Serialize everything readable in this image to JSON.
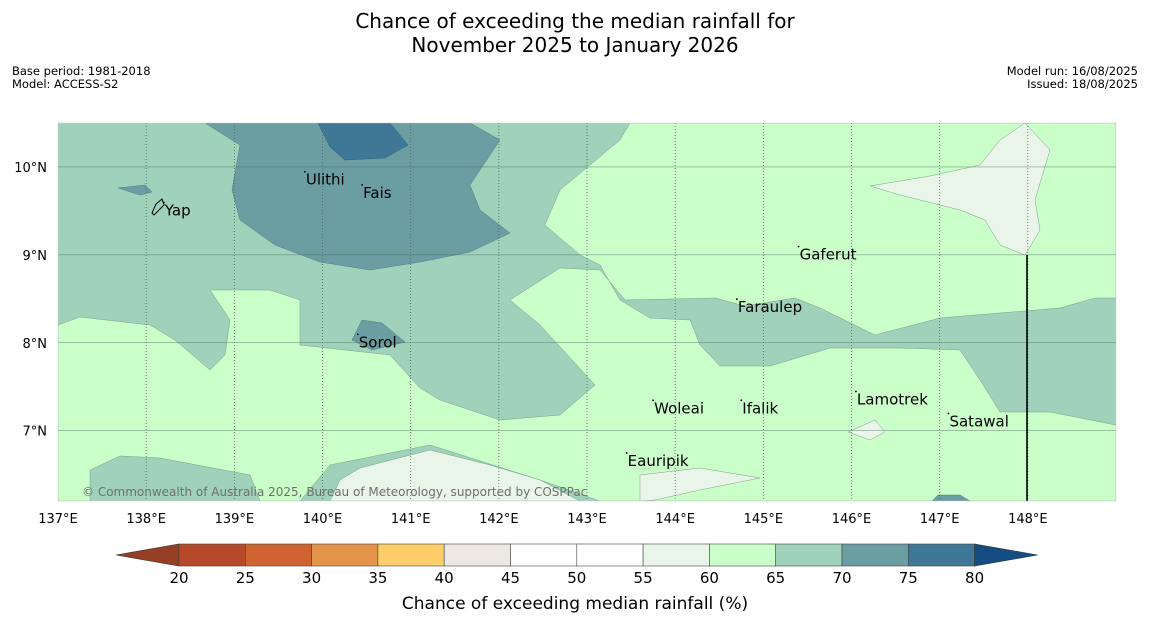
{
  "title": {
    "line1": "Chance of exceeding the median rainfall for",
    "line2": "November 2025 to January 2026"
  },
  "meta_left": [
    "Base period: 1981-2018",
    "Model: ACCESS-S2"
  ],
  "meta_right": [
    "Model run: 16/08/2025",
    "Issued: 18/08/2025"
  ],
  "copyright": "© Commonwealth of Australia 2025, Bureau of Meteorology, supported by COSPPac",
  "axes": {
    "lon_range": [
      137,
      149
    ],
    "lat_range": [
      6.2,
      10.5
    ],
    "lon_ticks": [
      "137°E",
      "138°E",
      "139°E",
      "140°E",
      "141°E",
      "142°E",
      "143°E",
      "144°E",
      "145°E",
      "146°E",
      "147°E",
      "148°E"
    ],
    "lat_ticks": [
      "10°N",
      "9°N",
      "8°N",
      "7°N"
    ]
  },
  "places": [
    {
      "name": "Ulithi",
      "lon": 139.8,
      "lat": 9.9
    },
    {
      "name": "Fais",
      "lon": 140.45,
      "lat": 9.75
    },
    {
      "name": "Yap",
      "lon": 138.2,
      "lat": 9.55
    },
    {
      "name": "Gaferut",
      "lon": 145.4,
      "lat": 9.05
    },
    {
      "name": "Faraulep",
      "lon": 144.7,
      "lat": 8.45
    },
    {
      "name": "Sorol",
      "lon": 140.4,
      "lat": 8.05
    },
    {
      "name": "Lamotrek",
      "lon": 146.05,
      "lat": 7.4
    },
    {
      "name": "Woleai",
      "lon": 143.75,
      "lat": 7.3
    },
    {
      "name": "Ifalik",
      "lon": 144.75,
      "lat": 7.3
    },
    {
      "name": "Satawal",
      "lon": 147.1,
      "lat": 7.15
    },
    {
      "name": "Eauripik",
      "lon": 143.45,
      "lat": 6.7
    }
  ],
  "colorbar": {
    "label": "Chance of exceeding median rainfall (%)",
    "ticks": [
      "20",
      "25",
      "30",
      "35",
      "40",
      "45",
      "50",
      "55",
      "60",
      "65",
      "70",
      "75",
      "80"
    ],
    "colors": [
      "#b5492a",
      "#cf6432",
      "#e3944a",
      "#fdcd69",
      "#ebe9e2",
      "#ffffff",
      "#ffffff",
      "#eaf5e9",
      "#caffca",
      "#9fd1bb",
      "#6a9ea2",
      "#3f7796"
    ],
    "under_color": "#953f24",
    "over_color": "#134d81"
  }
}
